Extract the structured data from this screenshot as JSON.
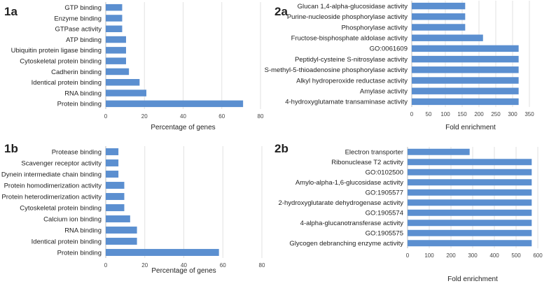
{
  "chart_data": [
    {
      "id": "1a",
      "panel_label": "1a",
      "type": "bar",
      "orientation": "horizontal",
      "categories": [
        "GTP binding",
        "Enzyme binding",
        "GTPase activity",
        "ATP binding",
        "Ubiquitin protein ligase binding",
        "Cytoskeletal protein binding",
        "Cadherin binding",
        "Identical protein binding",
        "RNA binding",
        "Protein binding"
      ],
      "values": [
        8.5,
        8.5,
        8.5,
        10.5,
        10.5,
        10.5,
        12,
        17.5,
        21,
        71
      ],
      "xlabel": "Percentage of genes",
      "xlim": [
        0,
        80
      ],
      "ticks": [
        0,
        20,
        40,
        60,
        80
      ],
      "grid": true,
      "bar_color": "#5b8fd0"
    },
    {
      "id": "2a",
      "panel_label": "2a",
      "type": "bar",
      "orientation": "horizontal",
      "categories": [
        "Glucan 1,4-alpha-glucosidase activity",
        "Purine-nucleoside phosphorylase activity",
        "Phosphorylase activity",
        "Fructose-bisphosphate aldolase activity",
        "GO:0061609",
        "Peptidyl-cysteine S-nitrosylase activity",
        "S-methyl-5-thioadenosine phosphorylase activity",
        "Alkyl hydroperoxide reductase activity",
        "Amylase activity",
        "4-hydroxyglutamate transaminase activity"
      ],
      "values": [
        159,
        159,
        159,
        212,
        318,
        318,
        318,
        318,
        318,
        318
      ],
      "xlabel": "Fold enrichment",
      "xlim": [
        0,
        350
      ],
      "ticks": [
        0,
        50,
        100,
        150,
        200,
        250,
        300,
        350
      ],
      "grid": true,
      "bar_color": "#5b8fd0"
    },
    {
      "id": "1b",
      "panel_label": "1b",
      "type": "bar",
      "orientation": "horizontal",
      "categories": [
        "Protease binding",
        "Scavenger receptor activity",
        "Dynein intermediate chain binding",
        "Protein homodimerization activity",
        "Protein heterodimerization activity",
        "Cytoskeletal protein binding",
        "Calcium ion binding",
        "RNA binding",
        "Identical protein binding",
        "Protein binding"
      ],
      "values": [
        6.5,
        6.5,
        6.5,
        9.5,
        9.5,
        9.5,
        12.5,
        16,
        16,
        58
      ],
      "xlabel": "Percentage of genes",
      "xlim": [
        0,
        80
      ],
      "ticks": [
        0,
        20,
        40,
        60,
        80
      ],
      "grid": true,
      "bar_color": "#5b8fd0"
    },
    {
      "id": "2b",
      "panel_label": "2b",
      "type": "bar",
      "orientation": "horizontal",
      "categories": [
        "Electron transporter",
        "Ribonuclease T2 activity",
        "GO:0102500",
        "Amylo-alpha-1,6-glucosidase activity",
        "GO:1905577",
        "2-hydroxyglutarate dehydrogenase activity",
        "GO:1905574",
        "4-alpha-glucanotransferase activity",
        "GO:1905575",
        "Glycogen debranching enzyme activity"
      ],
      "values": [
        286,
        572,
        572,
        572,
        572,
        572,
        572,
        572,
        572,
        572
      ],
      "xlabel": "Fold enrichment",
      "xlim": [
        0,
        600
      ],
      "ticks": [
        0,
        100,
        200,
        300,
        400,
        500,
        600
      ],
      "grid": true,
      "bar_color": "#5b8fd0"
    }
  ]
}
